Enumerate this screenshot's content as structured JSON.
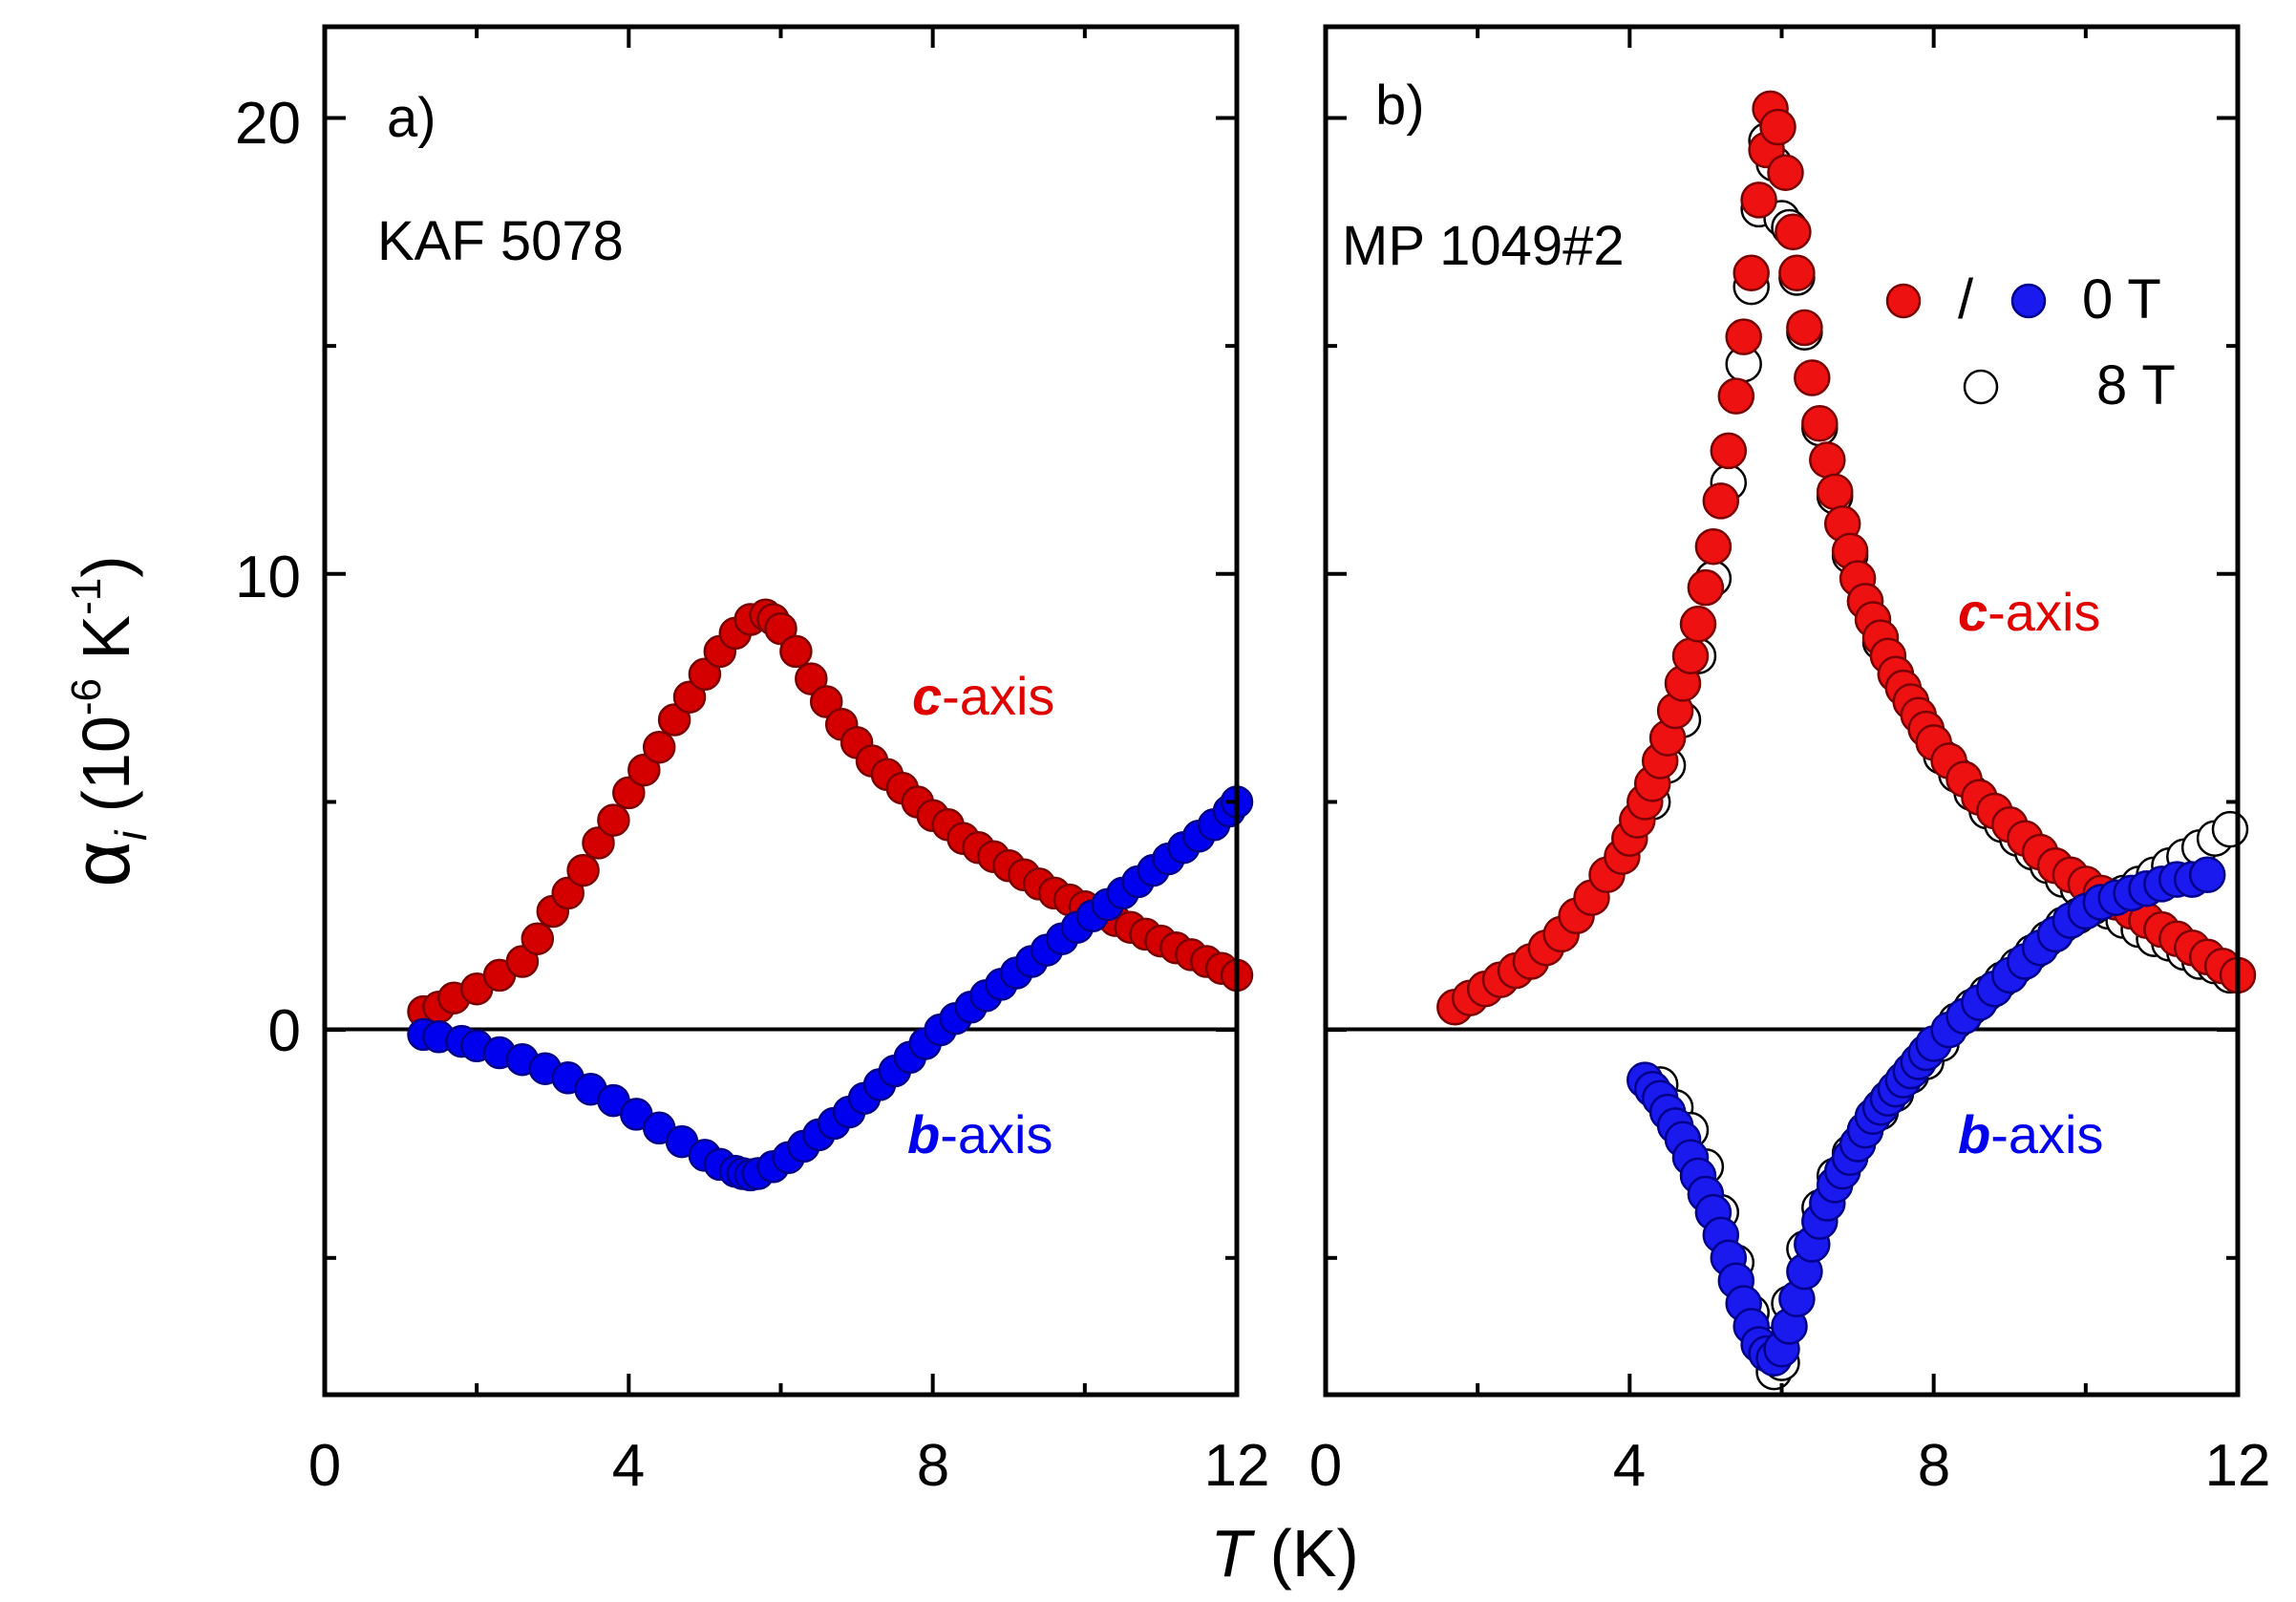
{
  "chart_data": [
    {
      "type": "scatter",
      "panel_label": "a)",
      "sample": "KAF 5078",
      "xlim": [
        0,
        12
      ],
      "ylim": [
        -8,
        22
      ],
      "xticks": [
        0,
        4,
        8,
        12
      ],
      "yticks": [
        0,
        10,
        20
      ],
      "zero_line": true,
      "series": [
        {
          "name": "c-axis",
          "color": "#d40000",
          "edge": "#7a0000",
          "x": [
            1.3,
            1.5,
            1.7,
            2.0,
            2.3,
            2.6,
            2.8,
            3.0,
            3.2,
            3.4,
            3.6,
            3.8,
            4.0,
            4.2,
            4.4,
            4.6,
            4.8,
            5.0,
            5.2,
            5.4,
            5.6,
            5.8,
            5.9,
            6.0,
            6.2,
            6.4,
            6.6,
            6.8,
            7.0,
            7.2,
            7.4,
            7.6,
            7.8,
            8.0,
            8.2,
            8.4,
            8.6,
            8.8,
            9.0,
            9.2,
            9.4,
            9.6,
            9.8,
            10.0,
            10.2,
            10.4,
            10.6,
            10.8,
            11.0,
            11.2,
            11.4,
            11.6,
            11.8,
            12.0
          ],
          "y": [
            0.4,
            0.5,
            0.7,
            0.9,
            1.2,
            1.5,
            2.0,
            2.6,
            3.0,
            3.5,
            4.1,
            4.6,
            5.2,
            5.7,
            6.2,
            6.8,
            7.3,
            7.8,
            8.3,
            8.7,
            9.0,
            9.1,
            9.0,
            8.8,
            8.3,
            7.7,
            7.2,
            6.7,
            6.3,
            5.9,
            5.6,
            5.3,
            5.0,
            4.7,
            4.5,
            4.2,
            4.0,
            3.8,
            3.6,
            3.4,
            3.2,
            3.0,
            2.85,
            2.7,
            2.55,
            2.4,
            2.25,
            2.1,
            1.95,
            1.8,
            1.65,
            1.5,
            1.35,
            1.2
          ]
        },
        {
          "name": "b-axis",
          "color": "#0000ee",
          "edge": "#00008a",
          "x": [
            1.3,
            1.5,
            1.8,
            2.0,
            2.3,
            2.6,
            2.9,
            3.2,
            3.5,
            3.8,
            4.1,
            4.4,
            4.7,
            5.0,
            5.2,
            5.4,
            5.5,
            5.6,
            5.7,
            5.9,
            6.1,
            6.3,
            6.5,
            6.7,
            6.9,
            7.1,
            7.3,
            7.5,
            7.7,
            7.9,
            8.1,
            8.3,
            8.5,
            8.7,
            8.9,
            9.1,
            9.3,
            9.5,
            9.7,
            9.9,
            10.1,
            10.3,
            10.5,
            10.7,
            10.9,
            11.1,
            11.3,
            11.5,
            11.7,
            11.9,
            12.0
          ],
          "y": [
            -0.1,
            -0.15,
            -0.25,
            -0.35,
            -0.5,
            -0.65,
            -0.85,
            -1.05,
            -1.3,
            -1.55,
            -1.85,
            -2.15,
            -2.45,
            -2.75,
            -2.95,
            -3.1,
            -3.15,
            -3.18,
            -3.15,
            -3.0,
            -2.8,
            -2.55,
            -2.3,
            -2.05,
            -1.8,
            -1.5,
            -1.2,
            -0.9,
            -0.6,
            -0.3,
            0.0,
            0.25,
            0.5,
            0.75,
            1.0,
            1.25,
            1.5,
            1.75,
            2.0,
            2.25,
            2.5,
            2.75,
            3.0,
            3.25,
            3.5,
            3.75,
            4.0,
            4.25,
            4.5,
            4.8,
            5.0
          ]
        }
      ]
    },
    {
      "type": "scatter",
      "panel_label": "b)",
      "sample": "MP 1049#2",
      "xlim": [
        0,
        12
      ],
      "ylim": [
        -8,
        22
      ],
      "xticks": [
        0,
        4,
        8,
        12
      ],
      "yticks": [
        0,
        10,
        20
      ],
      "zero_line": true,
      "legend": {
        "position": "top-right",
        "row1": [
          "/",
          "0 T"
        ],
        "row2": "8 T"
      },
      "series": [
        {
          "name": "c-axis 0 T",
          "color": "#ee1111",
          "edge": "#7a0000",
          "x": [
            1.7,
            1.9,
            2.1,
            2.3,
            2.5,
            2.7,
            2.9,
            3.1,
            3.3,
            3.5,
            3.7,
            3.9,
            4.0,
            4.1,
            4.2,
            4.3,
            4.4,
            4.5,
            4.6,
            4.7,
            4.8,
            4.9,
            5.0,
            5.1,
            5.2,
            5.3,
            5.4,
            5.5,
            5.6,
            5.7,
            5.8,
            5.85,
            5.95,
            6.05,
            6.15,
            6.2,
            6.3,
            6.4,
            6.5,
            6.6,
            6.7,
            6.8,
            6.9,
            7.0,
            7.1,
            7.2,
            7.3,
            7.4,
            7.5,
            7.6,
            7.7,
            7.8,
            7.9,
            8.0,
            8.2,
            8.4,
            8.6,
            8.8,
            9.0,
            9.2,
            9.4,
            9.6,
            9.8,
            10.0,
            10.2,
            10.4,
            10.6,
            10.8,
            11.0,
            11.2,
            11.4,
            11.6,
            11.8,
            12.0
          ],
          "y": [
            0.5,
            0.7,
            0.9,
            1.1,
            1.3,
            1.5,
            1.8,
            2.1,
            2.5,
            2.9,
            3.4,
            3.8,
            4.2,
            4.6,
            5.0,
            5.4,
            5.9,
            6.4,
            7.0,
            7.6,
            8.2,
            8.9,
            9.7,
            10.6,
            11.6,
            12.7,
            13.9,
            15.2,
            16.6,
            18.2,
            19.3,
            20.2,
            19.8,
            18.8,
            17.5,
            16.6,
            15.4,
            14.3,
            13.3,
            12.5,
            11.8,
            11.1,
            10.5,
            9.9,
            9.4,
            9.0,
            8.6,
            8.2,
            7.8,
            7.5,
            7.2,
            6.9,
            6.6,
            6.3,
            5.9,
            5.5,
            5.1,
            4.8,
            4.5,
            4.2,
            3.9,
            3.6,
            3.4,
            3.2,
            3.0,
            2.8,
            2.6,
            2.4,
            2.2,
            2.0,
            1.8,
            1.6,
            1.4,
            1.2
          ]
        },
        {
          "name": "b-axis 0 T",
          "color": "#1a1aee",
          "edge": "#00008a",
          "x": [
            4.2,
            4.3,
            4.4,
            4.5,
            4.6,
            4.7,
            4.8,
            4.9,
            5.0,
            5.1,
            5.2,
            5.3,
            5.4,
            5.5,
            5.6,
            5.7,
            5.8,
            5.9,
            6.0,
            6.1,
            6.2,
            6.3,
            6.4,
            6.5,
            6.6,
            6.7,
            6.8,
            6.9,
            7.0,
            7.1,
            7.2,
            7.3,
            7.4,
            7.5,
            7.6,
            7.7,
            7.8,
            7.9,
            8.0,
            8.2,
            8.4,
            8.6,
            8.8,
            9.0,
            9.2,
            9.4,
            9.6,
            9.8,
            10.0,
            10.2,
            10.4,
            10.6,
            10.8,
            11.0,
            11.2,
            11.4,
            11.6
          ],
          "y": [
            -1.1,
            -1.3,
            -1.5,
            -1.8,
            -2.1,
            -2.4,
            -2.8,
            -3.2,
            -3.6,
            -4.0,
            -4.5,
            -5.0,
            -5.5,
            -6.0,
            -6.5,
            -6.9,
            -7.1,
            -7.2,
            -7.0,
            -6.5,
            -5.9,
            -5.3,
            -4.7,
            -4.2,
            -3.8,
            -3.4,
            -3.1,
            -2.8,
            -2.5,
            -2.2,
            -1.9,
            -1.7,
            -1.5,
            -1.3,
            -1.1,
            -0.9,
            -0.7,
            -0.5,
            -0.3,
            0.0,
            0.3,
            0.6,
            0.9,
            1.2,
            1.5,
            1.8,
            2.1,
            2.4,
            2.6,
            2.8,
            2.9,
            3.0,
            3.1,
            3.2,
            3.3,
            3.3,
            3.4
          ]
        },
        {
          "name": "8 T",
          "color": "#ffffff",
          "edge": "#000000",
          "x": [
            4.3,
            4.5,
            4.7,
            4.9,
            5.1,
            5.3,
            5.5,
            5.6,
            5.7,
            5.8,
            5.9,
            6.0,
            6.1,
            6.2,
            6.3,
            6.5,
            6.7,
            6.9,
            7.1,
            7.3,
            7.5,
            7.7,
            7.9,
            8.1,
            8.3,
            8.5,
            8.7,
            8.9,
            9.1,
            9.3,
            9.5,
            9.7,
            9.9,
            10.1,
            10.3,
            10.5,
            10.7,
            10.9,
            11.1,
            11.3,
            11.5,
            11.7,
            11.9,
            4.4,
            4.6,
            4.8,
            5.0,
            5.2,
            5.4,
            5.6,
            5.8,
            5.9,
            6.0,
            6.1,
            6.3,
            6.5,
            6.7,
            6.9,
            7.1,
            7.3,
            7.5,
            7.7,
            7.9,
            8.1,
            8.3,
            8.5,
            8.7,
            8.9,
            9.1,
            9.3,
            9.5,
            9.7,
            9.9,
            10.1,
            10.3,
            10.5,
            10.7,
            10.9,
            11.1,
            11.3,
            11.5,
            11.7,
            11.9
          ],
          "y": [
            5.0,
            5.8,
            6.8,
            8.2,
            9.9,
            12.0,
            14.6,
            16.3,
            18.0,
            19.5,
            19.0,
            17.8,
            17.6,
            16.5,
            15.3,
            13.2,
            11.7,
            10.4,
            9.4,
            8.5,
            7.8,
            7.2,
            6.6,
            6.0,
            5.6,
            5.2,
            4.8,
            4.5,
            4.2,
            3.9,
            3.6,
            3.3,
            3.1,
            2.8,
            2.6,
            2.4,
            2.2,
            2.0,
            1.9,
            1.7,
            1.5,
            1.4,
            1.2,
            -1.2,
            -1.7,
            -2.2,
            -3.0,
            -4.0,
            -5.1,
            -6.2,
            -6.9,
            -7.5,
            -7.3,
            -6.0,
            -4.8,
            -3.9,
            -3.2,
            -2.7,
            -2.2,
            -1.8,
            -1.4,
            -1.0,
            -0.7,
            -0.3,
            0.2,
            0.5,
            0.8,
            1.1,
            1.4,
            1.7,
            2.0,
            2.3,
            2.5,
            2.7,
            2.9,
            3.0,
            3.2,
            3.4,
            3.6,
            3.8,
            4.0,
            4.2,
            4.4
          ]
        }
      ]
    }
  ],
  "labels": {
    "panel_a": "a)",
    "panel_b": "b)",
    "sample_a": "KAF 5078",
    "sample_b": "MP 1049#2",
    "c_axis_bold": "c",
    "c_axis_rest": "-axis",
    "b_axis_bold": "b",
    "b_axis_rest": "-axis",
    "legend_slash": "/",
    "legend_0T": "0 T",
    "legend_8T": "8 T",
    "xlabel_T": "T",
    "xlabel_unit": " (K)",
    "ylabel_alpha": "α",
    "ylabel_sub": "i",
    "ylabel_open": " (10",
    "ylabel_exp1": "-6",
    "ylabel_K": " K",
    "ylabel_exp2": "-1",
    "ylabel_close": ")",
    "tick_x": [
      "0",
      "4",
      "8",
      "12"
    ],
    "tick_y": [
      "0",
      "10",
      "20"
    ]
  }
}
